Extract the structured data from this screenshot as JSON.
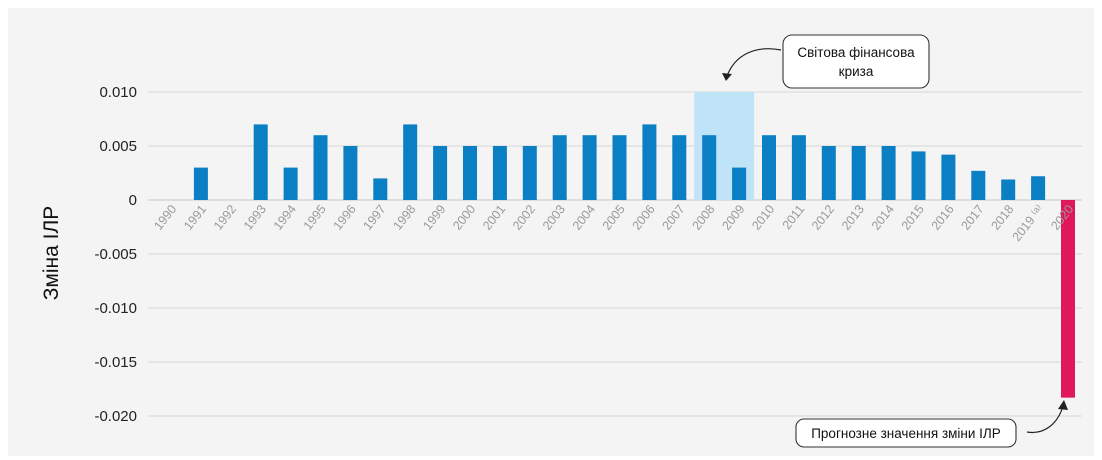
{
  "chart_data": {
    "type": "bar",
    "title": "",
    "xlabel": "",
    "ylabel": "Зміна ІЛР",
    "ylim": [
      -0.02,
      0.01
    ],
    "yticks": [
      0.01,
      0.005,
      0,
      -0.005,
      -0.01,
      -0.015,
      -0.02
    ],
    "ytick_labels": [
      "0.010",
      "0.005",
      "0",
      "-0.005",
      "-0.010",
      "-0.015",
      "-0.020"
    ],
    "grid": true,
    "categories": [
      "1990",
      "1991",
      "1992",
      "1993",
      "1994",
      "1995",
      "1996",
      "1997",
      "1998",
      "1999",
      "2000",
      "2001",
      "2002",
      "2003",
      "2004",
      "2005",
      "2006",
      "2007",
      "2008",
      "2009",
      "2010",
      "2011",
      "2012",
      "2013",
      "2014",
      "2015",
      "2016",
      "2017",
      "2018",
      "2019",
      "2020"
    ],
    "x_tick_labels": [
      "1990",
      "1991",
      "1992",
      "1993",
      "1994",
      "1995",
      "1996",
      "1997",
      "1998",
      "1999",
      "2000",
      "2001",
      "2002",
      "2003",
      "2004",
      "2005",
      "2006",
      "2007",
      "2008",
      "2009",
      "2010",
      "2011",
      "2012",
      "2013",
      "2014",
      "2015",
      "2016",
      "2017",
      "2018",
      "2019 ⁽ᵃ⁾",
      "2020"
    ],
    "values": [
      0,
      0.003,
      0,
      0.007,
      0.003,
      0.006,
      0.005,
      0.002,
      0.007,
      0.005,
      0.005,
      0.005,
      0.005,
      0.006,
      0.006,
      0.006,
      0.007,
      0.006,
      0.006,
      0.003,
      0.006,
      0.006,
      0.005,
      0.005,
      0.005,
      0.0045,
      0.0042,
      0.0027,
      0.0019,
      0.0022,
      -0.0183
    ],
    "colors": {
      "bar": "#0a7fc4",
      "forecast": "#e0175d",
      "highlight": "#bfe3f7",
      "grid": "#d6d6d6"
    },
    "forecast_index": 30,
    "highlight_range": [
      "2008",
      "2009"
    ],
    "annotations": [
      {
        "text_lines": [
          "Світова фінансова",
          "криза"
        ],
        "target": "2008-2009"
      },
      {
        "text_lines": [
          "Прогнозне значення зміни ІЛР"
        ],
        "target": "2020"
      }
    ]
  }
}
